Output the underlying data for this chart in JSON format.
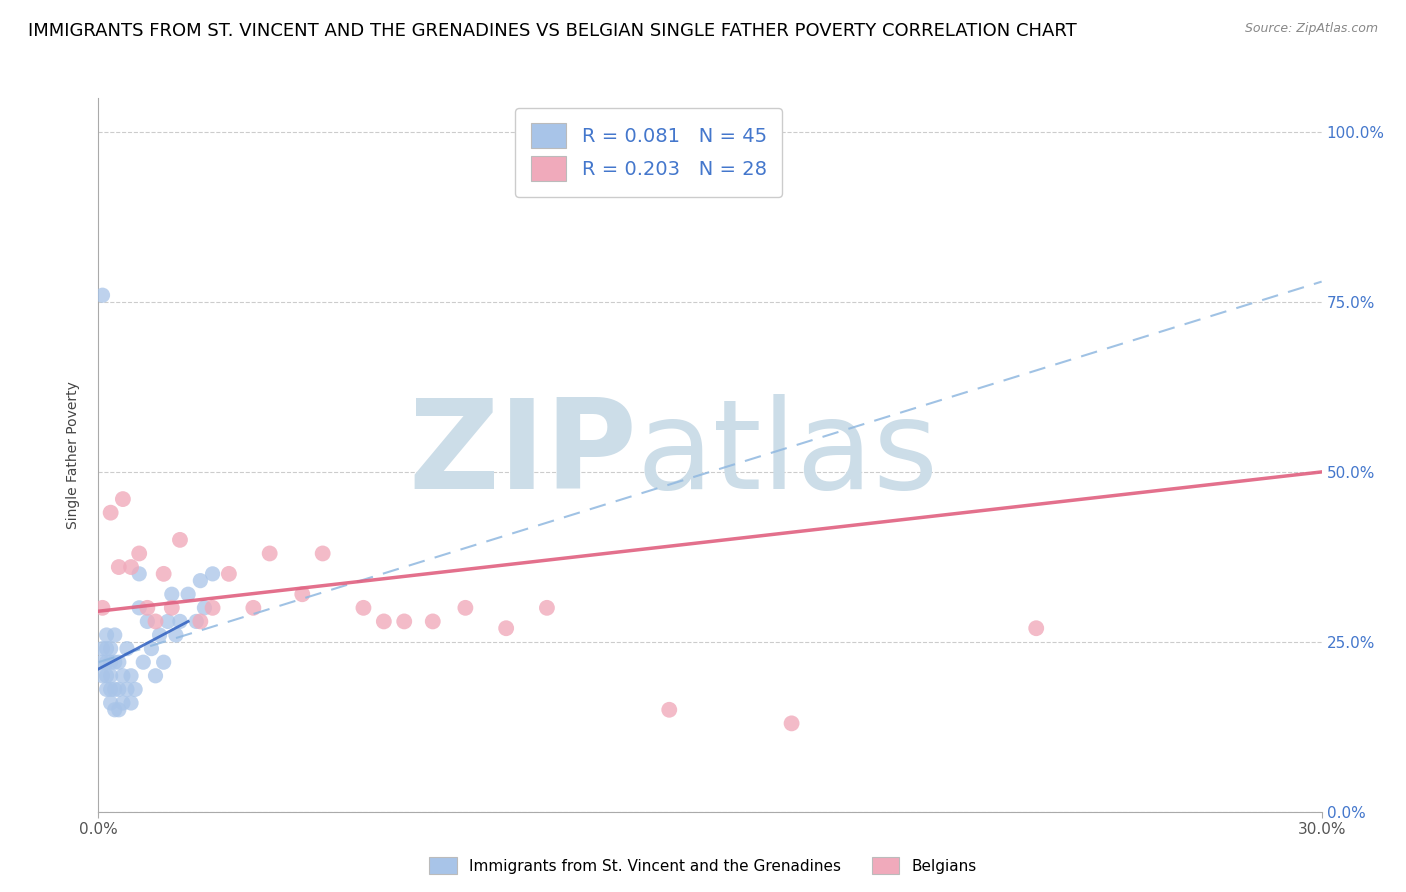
{
  "title": "IMMIGRANTS FROM ST. VINCENT AND THE GRENADINES VS BELGIAN SINGLE FATHER POVERTY CORRELATION CHART",
  "source": "Source: ZipAtlas.com",
  "ylabel": "Single Father Poverty",
  "xlim": [
    0.0,
    0.3
  ],
  "ylim": [
    0.0,
    1.05
  ],
  "xtick_positions": [
    0.0,
    0.3
  ],
  "xtick_labels": [
    "0.0%",
    "30.0%"
  ],
  "yticks": [
    0.0,
    0.25,
    0.5,
    0.75,
    1.0
  ],
  "ytick_labels": [
    "",
    "",
    "",
    "",
    ""
  ],
  "right_ytick_labels": [
    "0.0%",
    "25.0%",
    "50.0%",
    "75.0%",
    "100.0%"
  ],
  "blue_R": 0.081,
  "blue_N": 45,
  "pink_R": 0.203,
  "pink_N": 28,
  "blue_color": "#a8c4e8",
  "pink_color": "#f0aabb",
  "blue_line_color": "#90b8e0",
  "pink_line_color": "#e06080",
  "blue_solid_line_color": "#3060c0",
  "watermark_zip": "ZIP",
  "watermark_atlas": "atlas",
  "watermark_color": "#ccdde8",
  "legend_label_blue": "Immigrants from St. Vincent and the Grenadines",
  "legend_label_pink": "Belgians",
  "blue_scatter_x": [
    0.001,
    0.001,
    0.001,
    0.002,
    0.002,
    0.002,
    0.002,
    0.002,
    0.003,
    0.003,
    0.003,
    0.003,
    0.003,
    0.004,
    0.004,
    0.004,
    0.004,
    0.005,
    0.005,
    0.005,
    0.006,
    0.006,
    0.007,
    0.007,
    0.008,
    0.008,
    0.009,
    0.01,
    0.01,
    0.011,
    0.012,
    0.013,
    0.014,
    0.015,
    0.016,
    0.017,
    0.018,
    0.019,
    0.02,
    0.022,
    0.024,
    0.025,
    0.026,
    0.028,
    0.001
  ],
  "blue_scatter_y": [
    0.22,
    0.24,
    0.2,
    0.2,
    0.22,
    0.24,
    0.18,
    0.26,
    0.16,
    0.18,
    0.2,
    0.22,
    0.24,
    0.15,
    0.18,
    0.22,
    0.26,
    0.15,
    0.18,
    0.22,
    0.16,
    0.2,
    0.18,
    0.24,
    0.16,
    0.2,
    0.18,
    0.3,
    0.35,
    0.22,
    0.28,
    0.24,
    0.2,
    0.26,
    0.22,
    0.28,
    0.32,
    0.26,
    0.28,
    0.32,
    0.28,
    0.34,
    0.3,
    0.35,
    0.76
  ],
  "pink_scatter_x": [
    0.001,
    0.003,
    0.005,
    0.006,
    0.008,
    0.01,
    0.012,
    0.014,
    0.016,
    0.018,
    0.02,
    0.025,
    0.028,
    0.032,
    0.038,
    0.042,
    0.05,
    0.055,
    0.065,
    0.07,
    0.075,
    0.082,
    0.09,
    0.1,
    0.11,
    0.14,
    0.17,
    0.23
  ],
  "pink_scatter_y": [
    0.3,
    0.44,
    0.36,
    0.46,
    0.36,
    0.38,
    0.3,
    0.28,
    0.35,
    0.3,
    0.4,
    0.28,
    0.3,
    0.35,
    0.3,
    0.38,
    0.32,
    0.38,
    0.3,
    0.28,
    0.28,
    0.28,
    0.3,
    0.27,
    0.3,
    0.15,
    0.13,
    0.27
  ],
  "blue_dash_line_x0": 0.0,
  "blue_dash_line_x1": 0.3,
  "blue_dash_line_y0": 0.22,
  "blue_dash_line_y1": 0.78,
  "pink_line_x0": 0.0,
  "pink_line_x1": 0.3,
  "pink_line_y0": 0.295,
  "pink_line_y1": 0.5,
  "blue_solid_line_x0": 0.0,
  "blue_solid_line_x1": 0.022,
  "blue_solid_line_y0": 0.21,
  "blue_solid_line_y1": 0.28,
  "title_fontsize": 13,
  "axis_label_fontsize": 10,
  "tick_fontsize": 11,
  "legend_fontsize": 14
}
